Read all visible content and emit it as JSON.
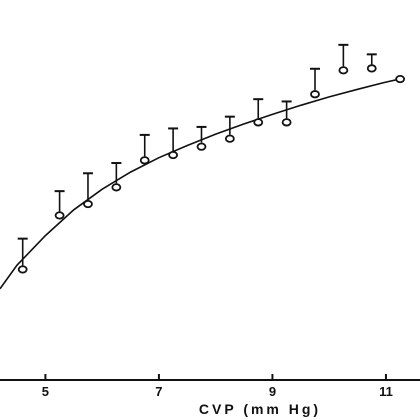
{
  "chart_data": {
    "type": "scatter",
    "title": "",
    "xlabel": "CVP (mm Hg)",
    "ylabel": "",
    "xlim": [
      4.2,
      11.6
    ],
    "ylim": [
      0,
      100
    ],
    "x_ticks": [
      5,
      7,
      9,
      11
    ],
    "x_tick_labels": [
      "5",
      "7",
      "9",
      "11"
    ],
    "grid": false,
    "legend": "none",
    "colors": {
      "ink": "#111111",
      "background": "#ffffff"
    },
    "series": [
      {
        "kind": "points-with-upper-error",
        "points": [
          {
            "x": 4.6,
            "y": 29.1,
            "err": 8.1
          },
          {
            "x": 5.25,
            "y": 43.3,
            "err": 6.4
          },
          {
            "x": 5.75,
            "y": 46.3,
            "err": 8.1
          },
          {
            "x": 6.25,
            "y": 50.7,
            "err": 6.4
          },
          {
            "x": 6.75,
            "y": 57.8,
            "err": 6.7
          },
          {
            "x": 7.25,
            "y": 59.2,
            "err": 7.0
          },
          {
            "x": 7.75,
            "y": 61.4,
            "err": 5.2
          },
          {
            "x": 8.25,
            "y": 63.5,
            "err": 5.8
          },
          {
            "x": 8.75,
            "y": 67.8,
            "err": 6.1
          },
          {
            "x": 9.25,
            "y": 67.8,
            "err": 5.5
          },
          {
            "x": 9.75,
            "y": 75.2,
            "err": 6.7
          },
          {
            "x": 10.25,
            "y": 81.5,
            "err": 6.7
          },
          {
            "x": 10.75,
            "y": 82.0,
            "err": 3.7
          },
          {
            "x": 11.25,
            "y": 79.2,
            "err": 0
          }
        ]
      },
      {
        "kind": "fit-curve",
        "x": [
          4.2,
          4.5,
          5.0,
          5.5,
          6.0,
          6.5,
          7.0,
          7.5,
          8.0,
          8.5,
          9.0,
          9.5,
          10.0,
          10.5,
          11.0,
          11.3
        ],
        "y": [
          24.0,
          30.2,
          38.0,
          44.8,
          50.2,
          54.7,
          58.5,
          61.7,
          64.7,
          67.4,
          69.9,
          72.3,
          74.5,
          76.5,
          78.4,
          79.4
        ]
      }
    ]
  }
}
